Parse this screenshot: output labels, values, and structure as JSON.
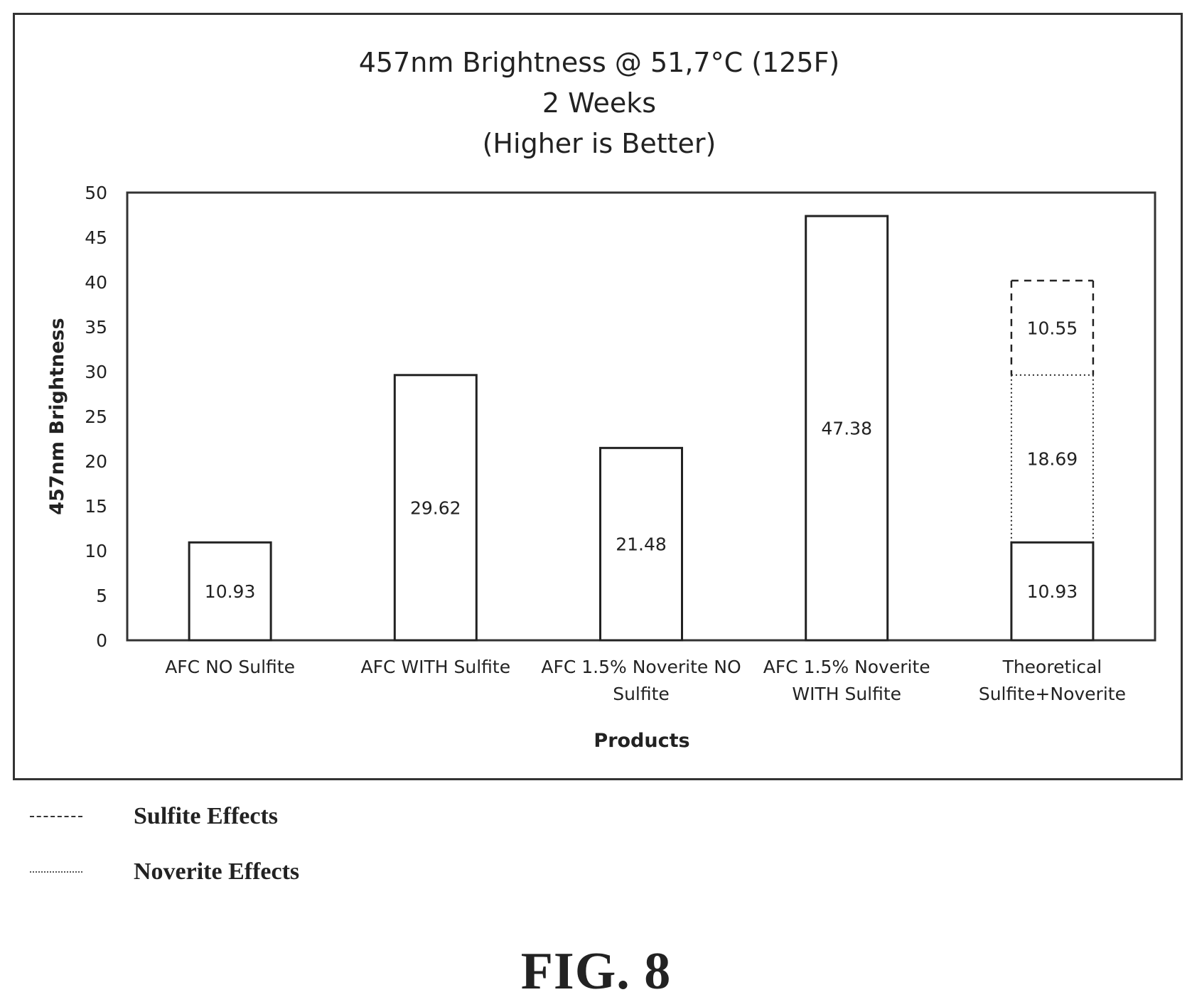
{
  "chart_data": {
    "type": "bar",
    "title_lines": [
      "457nm Brightness @ 51,7°C (125F)",
      "2 Weeks",
      "(Higher is Better)"
    ],
    "xlabel": "Products",
    "ylabel": "457nm Brightness",
    "ylim": [
      0,
      50
    ],
    "yticks": [
      0,
      5,
      10,
      15,
      20,
      25,
      30,
      35,
      40,
      45,
      50
    ],
    "grid": false,
    "categories": [
      [
        "AFC NO Sulfite"
      ],
      [
        "AFC WITH Sulfite"
      ],
      [
        "AFC 1.5% Noverite NO",
        "Sulfite"
      ],
      [
        "AFC 1.5% Noverite",
        "WITH Sulfite"
      ],
      [
        "Theoretical",
        "Sulfite+Noverite"
      ]
    ],
    "values": [
      10.93,
      29.62,
      21.48,
      47.38,
      null
    ],
    "value_labels": [
      "10.93",
      "29.62",
      "21.48",
      "47.38",
      ""
    ],
    "stacked_bar": {
      "category_index": 4,
      "segments": [
        {
          "value": 10.93,
          "label": "10.93",
          "style": "solid"
        },
        {
          "value": 18.69,
          "label": "18.69",
          "style": "dotted"
        },
        {
          "value": 10.55,
          "label": "10.55",
          "style": "dashed"
        }
      ]
    }
  },
  "legend": [
    {
      "label": "Sulfite Effects",
      "style": "dashed"
    },
    {
      "label": "Noverite Effects",
      "style": "dotted"
    }
  ],
  "figure_caption": "FIG. 8"
}
